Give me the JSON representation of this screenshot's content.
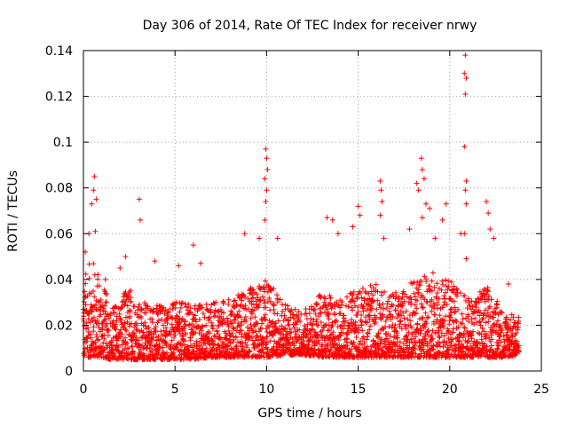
{
  "chart_data": {
    "type": "scatter",
    "title": "Day 306 of 2014, Rate Of TEC Index for receiver nrwy",
    "xlabel": "GPS time / hours",
    "ylabel": "ROTI / TECUs",
    "xlim": [
      0,
      25
    ],
    "ylim": [
      0,
      0.14
    ],
    "x_ticks": [
      0,
      5,
      10,
      15,
      20,
      25
    ],
    "x_tick_labels": [
      "0",
      "5",
      "10",
      "15",
      "20",
      "25"
    ],
    "y_ticks": [
      0,
      0.02,
      0.04,
      0.06,
      0.08,
      0.1,
      0.12,
      0.14
    ],
    "y_tick_labels": [
      "0",
      "0.02",
      "0.04",
      "0.06",
      "0.08",
      "0.1",
      "0.12",
      "0.14"
    ],
    "grid": true,
    "marker": "+",
    "marker_color": "#ff0000",
    "series": [
      {
        "name": "ROTI",
        "baseline_envelope": {
          "x": [
            0,
            0.5,
            1,
            1.5,
            2,
            2.5,
            3,
            4,
            5,
            6,
            7,
            8,
            9,
            10,
            11,
            12,
            13,
            14,
            15,
            16,
            17,
            18,
            19,
            20,
            21,
            22,
            23,
            23.8
          ],
          "low": [
            0.006,
            0.006,
            0.006,
            0.005,
            0.005,
            0.005,
            0.005,
            0.005,
            0.005,
            0.005,
            0.006,
            0.006,
            0.006,
            0.006,
            0.007,
            0.007,
            0.006,
            0.006,
            0.006,
            0.006,
            0.006,
            0.006,
            0.006,
            0.006,
            0.006,
            0.006,
            0.006,
            0.007
          ],
          "high": [
            0.042,
            0.05,
            0.04,
            0.028,
            0.032,
            0.038,
            0.03,
            0.03,
            0.03,
            0.03,
            0.03,
            0.032,
            0.036,
            0.04,
            0.03,
            0.026,
            0.034,
            0.032,
            0.036,
            0.038,
            0.034,
            0.04,
            0.044,
            0.04,
            0.032,
            0.038,
            0.026,
            0.024
          ]
        },
        "spikes": [
          {
            "x": 0.1,
            "y": 0.052
          },
          {
            "x": 0.3,
            "y": 0.06
          },
          {
            "x": 0.45,
            "y": 0.073
          },
          {
            "x": 0.55,
            "y": 0.079
          },
          {
            "x": 0.6,
            "y": 0.085
          },
          {
            "x": 0.7,
            "y": 0.075
          },
          {
            "x": 0.65,
            "y": 0.061
          },
          {
            "x": 1.2,
            "y": 0.04
          },
          {
            "x": 2.0,
            "y": 0.045
          },
          {
            "x": 2.3,
            "y": 0.05
          },
          {
            "x": 3.05,
            "y": 0.075
          },
          {
            "x": 3.1,
            "y": 0.066
          },
          {
            "x": 3.9,
            "y": 0.048
          },
          {
            "x": 5.2,
            "y": 0.046
          },
          {
            "x": 6.0,
            "y": 0.055
          },
          {
            "x": 6.4,
            "y": 0.047
          },
          {
            "x": 8.8,
            "y": 0.06
          },
          {
            "x": 9.6,
            "y": 0.058
          },
          {
            "x": 9.95,
            "y": 0.097
          },
          {
            "x": 10.0,
            "y": 0.093
          },
          {
            "x": 10.05,
            "y": 0.088
          },
          {
            "x": 9.9,
            "y": 0.084
          },
          {
            "x": 10.0,
            "y": 0.079
          },
          {
            "x": 9.95,
            "y": 0.074
          },
          {
            "x": 9.9,
            "y": 0.066
          },
          {
            "x": 10.6,
            "y": 0.058
          },
          {
            "x": 13.3,
            "y": 0.067
          },
          {
            "x": 13.6,
            "y": 0.066
          },
          {
            "x": 13.9,
            "y": 0.06
          },
          {
            "x": 14.7,
            "y": 0.063
          },
          {
            "x": 15.0,
            "y": 0.072
          },
          {
            "x": 15.1,
            "y": 0.068
          },
          {
            "x": 16.2,
            "y": 0.083
          },
          {
            "x": 16.25,
            "y": 0.079
          },
          {
            "x": 16.3,
            "y": 0.074
          },
          {
            "x": 16.2,
            "y": 0.068
          },
          {
            "x": 16.4,
            "y": 0.058
          },
          {
            "x": 17.8,
            "y": 0.062
          },
          {
            "x": 18.2,
            "y": 0.082
          },
          {
            "x": 18.3,
            "y": 0.079
          },
          {
            "x": 18.45,
            "y": 0.093
          },
          {
            "x": 18.5,
            "y": 0.088
          },
          {
            "x": 18.6,
            "y": 0.084
          },
          {
            "x": 18.7,
            "y": 0.073
          },
          {
            "x": 18.5,
            "y": 0.067
          },
          {
            "x": 18.9,
            "y": 0.071
          },
          {
            "x": 19.2,
            "y": 0.058
          },
          {
            "x": 19.8,
            "y": 0.073
          },
          {
            "x": 19.6,
            "y": 0.066
          },
          {
            "x": 20.6,
            "y": 0.06
          },
          {
            "x": 20.85,
            "y": 0.138
          },
          {
            "x": 20.8,
            "y": 0.13
          },
          {
            "x": 20.9,
            "y": 0.128
          },
          {
            "x": 20.85,
            "y": 0.121
          },
          {
            "x": 20.8,
            "y": 0.098
          },
          {
            "x": 20.9,
            "y": 0.083
          },
          {
            "x": 20.85,
            "y": 0.079
          },
          {
            "x": 20.9,
            "y": 0.073
          },
          {
            "x": 20.8,
            "y": 0.06
          },
          {
            "x": 20.9,
            "y": 0.049
          },
          {
            "x": 22.0,
            "y": 0.074
          },
          {
            "x": 22.1,
            "y": 0.069
          },
          {
            "x": 22.2,
            "y": 0.062
          },
          {
            "x": 22.4,
            "y": 0.058
          },
          {
            "x": 23.2,
            "y": 0.038
          }
        ]
      }
    ]
  }
}
